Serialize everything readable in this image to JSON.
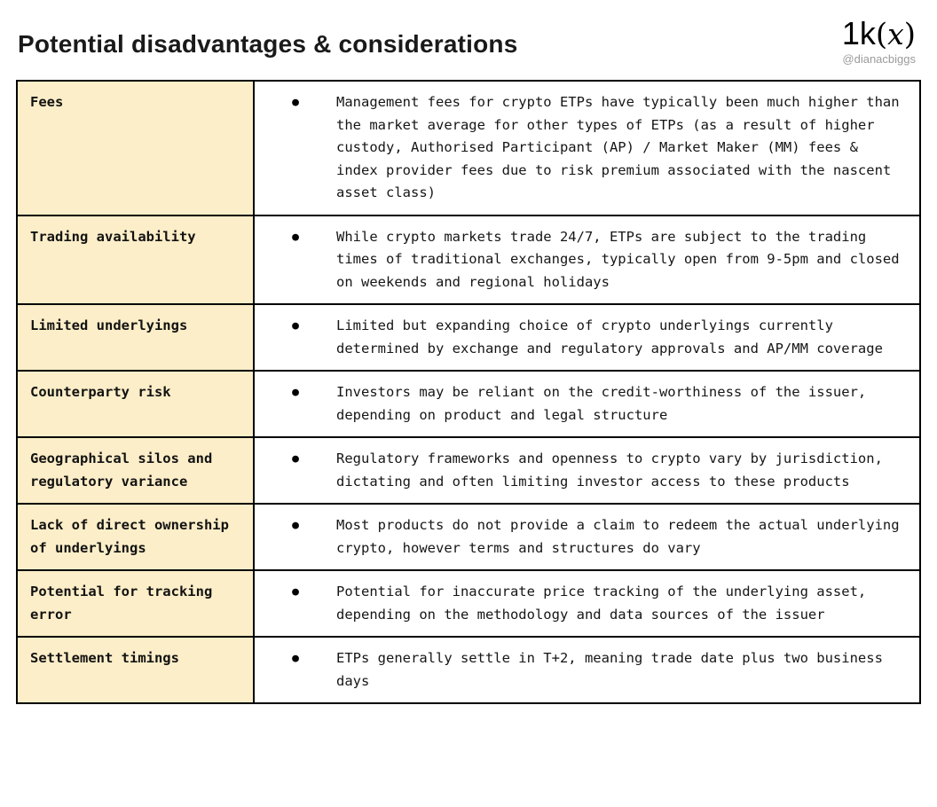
{
  "header": {
    "title": "Potential disadvantages & considerations",
    "logo": {
      "prefix": "1k",
      "open_paren": "(",
      "x": "x",
      "close_paren": ")"
    },
    "handle": "@dianacbiggs"
  },
  "colors": {
    "label_cell_background": "#FCEEC8",
    "table_border": "#000000",
    "handle_text": "#9B9B9B"
  },
  "table": {
    "rows": [
      {
        "label": "Fees",
        "text": "Management fees for crypto ETPs have typically been much higher than the market average for other types of ETPs (as a result of higher custody, Authorised Participant (AP) / Market Maker (MM) fees & index provider fees due to risk premium associated with the nascent asset class)"
      },
      {
        "label": "Trading availability",
        "text": "While crypto markets trade 24/7, ETPs are subject to the trading times of traditional exchanges, typically open from 9-5pm and closed on weekends and regional holidays"
      },
      {
        "label": "Limited underlyings",
        "text": "Limited but expanding choice of crypto underlyings currently determined by exchange and regulatory approvals and AP/MM coverage"
      },
      {
        "label": "Counterparty risk",
        "text": "Investors may be reliant on the credit-worthiness of the issuer, depending on product and legal structure"
      },
      {
        "label": "Geographical silos and regulatory variance",
        "text": "Regulatory frameworks and openness to crypto vary by jurisdiction, dictating and often limiting investor access to these products"
      },
      {
        "label": "Lack of direct ownership of underlyings",
        "text": "Most products do not provide a claim to redeem the actual underlying crypto, however terms and structures do vary"
      },
      {
        "label": "Potential for tracking error",
        "text": "Potential for inaccurate price tracking of the underlying asset, depending on the methodology and data sources of the issuer"
      },
      {
        "label": "Settlement timings",
        "text": "ETPs generally settle in T+2, meaning trade date plus two business days"
      }
    ]
  }
}
